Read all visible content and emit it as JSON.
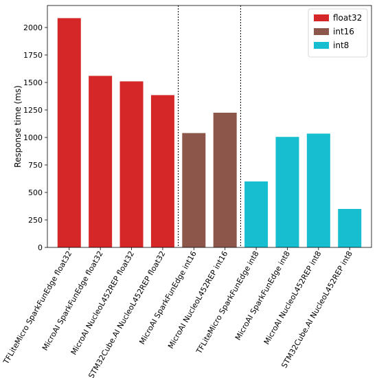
{
  "chart_data": {
    "type": "bar",
    "title": "",
    "xlabel": "",
    "ylabel": "Response time (ms)",
    "ylim": [
      0,
      2200
    ],
    "yticks": [
      0,
      250,
      500,
      750,
      1000,
      1250,
      1500,
      1750,
      2000
    ],
    "grid": false,
    "legend_position": "top-right",
    "categories": [
      "TFLiteMicro SparkFunEdge float32",
      "MicroAI SparkFunEdge float32",
      "MicroAI NucleoL452REP float32",
      "STM32Cube.AI NucleoL452REP float32",
      "MicroAI SparkFunEdge int16",
      "MicroAI NucleoL452REP int16",
      "TFLiteMicro SparkFunEdge int8",
      "MicroAI SparkFunEdge int8",
      "MicroAI NucleoL452REP int8",
      "STM32Cube.AI NucleoL452REP int8"
    ],
    "values": [
      2085,
      1560,
      1510,
      1385,
      1040,
      1225,
      600,
      1005,
      1035,
      350
    ],
    "bar_series": [
      "float32",
      "float32",
      "float32",
      "float32",
      "int16",
      "int16",
      "int8",
      "int8",
      "int8",
      "int8"
    ],
    "series": [
      {
        "name": "float32",
        "color": "#d62728"
      },
      {
        "name": "int16",
        "color": "#8c564b"
      },
      {
        "name": "int8",
        "color": "#17becf"
      }
    ],
    "separators_after_index": [
      3,
      5
    ]
  }
}
